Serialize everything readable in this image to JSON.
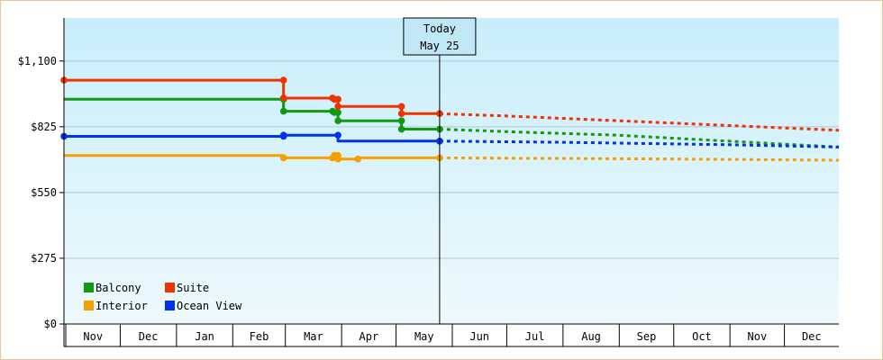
{
  "chart_data": {
    "type": "line",
    "step": true,
    "y_ticks": [
      "$0",
      "$275",
      "$550",
      "$825",
      "$1,100"
    ],
    "y_tick_values": [
      0,
      275,
      550,
      825,
      1100
    ],
    "ylim": [
      0,
      1280
    ],
    "x_range": [
      "2023-10-31",
      "2024-12-31"
    ],
    "months": [
      {
        "label": "Nov",
        "start": "2023-11-01"
      },
      {
        "label": "Dec",
        "start": "2023-12-01"
      },
      {
        "label": "Jan",
        "start": "2024-01-01"
      },
      {
        "label": "Feb",
        "start": "2024-02-01"
      },
      {
        "label": "Mar",
        "start": "2024-03-01"
      },
      {
        "label": "Apr",
        "start": "2024-04-01"
      },
      {
        "label": "May",
        "start": "2024-05-01"
      },
      {
        "label": "Jun",
        "start": "2024-06-01"
      },
      {
        "label": "Jul",
        "start": "2024-07-01"
      },
      {
        "label": "Aug",
        "start": "2024-08-01"
      },
      {
        "label": "Sep",
        "start": "2024-09-01"
      },
      {
        "label": "Oct",
        "start": "2024-10-01"
      },
      {
        "label": "Nov",
        "start": "2024-11-01"
      },
      {
        "label": "Dec",
        "start": "2024-12-01"
      }
    ],
    "today": {
      "line1": "Today",
      "line2": "May 25",
      "date": "2024-05-25"
    },
    "legend_position": "bottom-left",
    "series": [
      {
        "name": "Balcony",
        "color": "#119911",
        "points": [
          [
            "2023-10-31",
            940
          ],
          [
            "2024-02-29",
            940
          ],
          [
            "2024-02-29",
            890
          ],
          [
            "2024-03-27",
            890
          ],
          [
            "2024-03-28",
            885
          ],
          [
            "2024-03-30",
            885
          ],
          [
            "2024-03-30",
            850
          ],
          [
            "2024-05-04",
            850
          ],
          [
            "2024-05-04",
            815
          ],
          [
            "2024-05-25",
            815
          ]
        ],
        "markers": [
          [
            "2024-02-29",
            940
          ],
          [
            "2024-02-29",
            890
          ],
          [
            "2024-03-27",
            890
          ],
          [
            "2024-03-28",
            885
          ],
          [
            "2024-03-30",
            885
          ],
          [
            "2024-03-30",
            850
          ],
          [
            "2024-05-04",
            850
          ],
          [
            "2024-05-04",
            815
          ],
          [
            "2024-05-25",
            815
          ]
        ],
        "forecast": [
          [
            "2024-05-25",
            815
          ],
          [
            "2024-06-30",
            805
          ],
          [
            "2024-08-31",
            790
          ],
          [
            "2024-10-31",
            765
          ],
          [
            "2024-12-31",
            740
          ]
        ]
      },
      {
        "name": "Suite",
        "color": "#ee3300",
        "points": [
          [
            "2023-10-31",
            1020
          ],
          [
            "2024-02-29",
            1020
          ],
          [
            "2024-02-29",
            945
          ],
          [
            "2024-03-27",
            945
          ],
          [
            "2024-03-28",
            940
          ],
          [
            "2024-03-30",
            940
          ],
          [
            "2024-03-30",
            910
          ],
          [
            "2024-05-04",
            910
          ],
          [
            "2024-05-04",
            880
          ],
          [
            "2024-05-25",
            880
          ]
        ],
        "markers": [
          [
            "2023-10-31",
            1020
          ],
          [
            "2024-02-29",
            1020
          ],
          [
            "2024-02-29",
            945
          ],
          [
            "2024-03-27",
            945
          ],
          [
            "2024-03-28",
            940
          ],
          [
            "2024-03-30",
            940
          ],
          [
            "2024-03-30",
            910
          ],
          [
            "2024-05-04",
            910
          ],
          [
            "2024-05-04",
            880
          ],
          [
            "2024-05-25",
            880
          ]
        ],
        "forecast": [
          [
            "2024-05-25",
            880
          ],
          [
            "2024-07-01",
            870
          ],
          [
            "2024-09-01",
            850
          ],
          [
            "2024-11-01",
            830
          ],
          [
            "2024-12-31",
            810
          ]
        ]
      },
      {
        "name": "Interior",
        "color": "#f5a000",
        "points": [
          [
            "2023-10-31",
            705
          ],
          [
            "2024-02-29",
            705
          ],
          [
            "2024-02-29",
            695
          ],
          [
            "2024-03-27",
            695
          ],
          [
            "2024-03-28",
            705
          ],
          [
            "2024-03-30",
            705
          ],
          [
            "2024-03-30",
            690
          ],
          [
            "2024-04-10",
            690
          ],
          [
            "2024-04-10",
            695
          ],
          [
            "2024-05-25",
            695
          ]
        ],
        "markers": [
          [
            "2024-02-29",
            695
          ],
          [
            "2024-03-27",
            695
          ],
          [
            "2024-03-28",
            705
          ],
          [
            "2024-03-30",
            705
          ],
          [
            "2024-03-30",
            690
          ],
          [
            "2024-04-10",
            690
          ],
          [
            "2024-05-25",
            695
          ]
        ],
        "forecast": [
          [
            "2024-05-25",
            695
          ],
          [
            "2024-10-01",
            690
          ],
          [
            "2024-12-31",
            685
          ]
        ]
      },
      {
        "name": "Ocean View",
        "color": "#0033ee",
        "points": [
          [
            "2023-10-31",
            785
          ],
          [
            "2024-02-29",
            785
          ],
          [
            "2024-02-29",
            790
          ],
          [
            "2024-03-30",
            790
          ],
          [
            "2024-03-30",
            765
          ],
          [
            "2024-05-25",
            765
          ]
        ],
        "markers": [
          [
            "2023-10-31",
            785
          ],
          [
            "2024-02-29",
            785
          ],
          [
            "2024-02-29",
            790
          ],
          [
            "2024-03-30",
            790
          ],
          [
            "2024-05-25",
            765
          ]
        ],
        "forecast": [
          [
            "2024-05-25",
            765
          ],
          [
            "2024-08-01",
            760
          ],
          [
            "2024-10-31",
            750
          ],
          [
            "2024-12-31",
            740
          ]
        ]
      }
    ]
  }
}
